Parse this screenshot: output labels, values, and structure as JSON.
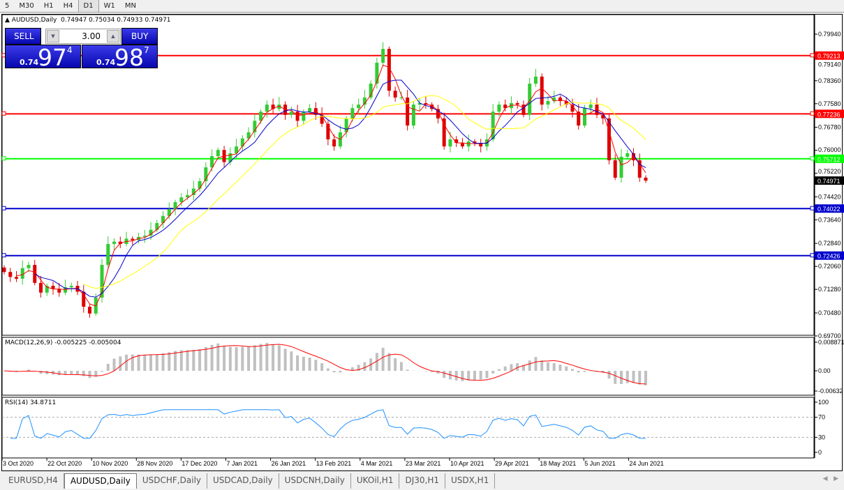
{
  "toolbar": {
    "timeframes": [
      "5",
      "M30",
      "H1",
      "H4",
      "D1",
      "W1",
      "MN"
    ],
    "active": "D1"
  },
  "chart": {
    "title": "AUDUSD,Daily",
    "ohlc": "0.74947 0.75034 0.74933 0.74971"
  },
  "one_click": {
    "sell_label": "SELL",
    "buy_label": "BUY",
    "lot": "3.00",
    "sell_prefix": "0.74",
    "sell_big": "97",
    "sell_sup": "4",
    "buy_prefix": "0.74",
    "buy_big": "98",
    "buy_sup": "7"
  },
  "price_axis": {
    "ticks": [
      "0.79940",
      "0.79140",
      "0.78360",
      "0.77580",
      "0.76780",
      "0.76000",
      "0.75220",
      "0.74420",
      "0.73640",
      "0.72840",
      "0.72060",
      "0.71280",
      "0.70480",
      "0.69700"
    ],
    "current": "0.74971",
    "current_color": "#000000"
  },
  "levels": [
    {
      "price": "0.79213",
      "color": "#ff0000"
    },
    {
      "price": "0.77236",
      "color": "#ff0000"
    },
    {
      "price": "0.75712",
      "color": "#00ff00"
    },
    {
      "price": "0.74022",
      "color": "#0000cc"
    },
    {
      "price": "0.72426",
      "color": "#0000cc"
    }
  ],
  "dates": [
    "3 Oct 2020",
    "22 Oct 2020",
    "10 Nov 2020",
    "28 Nov 2020",
    "17 Dec 2020",
    "7 Jan 2021",
    "26 Jan 2021",
    "13 Feb 2021",
    "4 Mar 2021",
    "23 Mar 2021",
    "10 Apr 2021",
    "29 Apr 2021",
    "18 May 2021",
    "5 Jun 2021",
    "24 Jun 2021"
  ],
  "macd": {
    "label": "MACD(12,26,9) -0.005225 -0.005004",
    "ticks": [
      "0.008871",
      "0.00",
      "-0.00632"
    ]
  },
  "rsi": {
    "label": "RSI(14) 34.8711",
    "ticks": [
      "100",
      "70",
      "30",
      "0"
    ]
  },
  "tabs": [
    "EURUSD,H4",
    "AUDUSD,Daily",
    "USDCHF,Daily",
    "USDCAD,Daily",
    "USDCNH,Daily",
    "UKOil,H1",
    "DJ30,H1",
    "USDX,H1"
  ],
  "active_tab": "AUDUSD,Daily",
  "chart_data": {
    "type": "candlestick",
    "symbol": "AUDUSD",
    "timeframe": "Daily",
    "ylim": [
      0.697,
      0.7994
    ],
    "closes": [
      0.7187,
      0.717,
      0.7164,
      0.72,
      0.7211,
      0.715,
      0.7117,
      0.714,
      0.713,
      0.7117,
      0.7135,
      0.714,
      0.712,
      0.7069,
      0.7046,
      0.71,
      0.7211,
      0.7282,
      0.729,
      0.7282,
      0.73,
      0.7295,
      0.7306,
      0.731,
      0.733,
      0.7353,
      0.7377,
      0.74,
      0.7424,
      0.744,
      0.7448,
      0.747,
      0.7495,
      0.7542,
      0.758,
      0.7601,
      0.756,
      0.759,
      0.7613,
      0.764,
      0.7661,
      0.77,
      0.7731,
      0.7755,
      0.774,
      0.7755,
      0.772,
      0.7731,
      0.77,
      0.7731,
      0.7743,
      0.772,
      0.769,
      0.7637,
      0.7613,
      0.7661,
      0.7708,
      0.7743,
      0.7755,
      0.7779,
      0.7826,
      0.7897,
      0.7944,
      0.7802,
      0.7779,
      0.7779,
      0.7684,
      0.7755,
      0.776,
      0.7755,
      0.774,
      0.7708,
      0.7613,
      0.7637,
      0.7625,
      0.7613,
      0.763,
      0.7625,
      0.7613,
      0.7637,
      0.7731,
      0.7755,
      0.7743,
      0.776,
      0.7755,
      0.772,
      0.7826,
      0.785,
      0.7755,
      0.7767,
      0.7779,
      0.7767,
      0.7755,
      0.7731,
      0.7684,
      0.7743,
      0.7755,
      0.772,
      0.7708,
      0.7566,
      0.7507,
      0.7578,
      0.759,
      0.7566,
      0.7507,
      0.7497
    ],
    "ma_colors": [
      "#ff0000",
      "#0000cc",
      "#ffff00"
    ],
    "bull_color": "#33cc33",
    "bear_color": "#dd0000"
  }
}
